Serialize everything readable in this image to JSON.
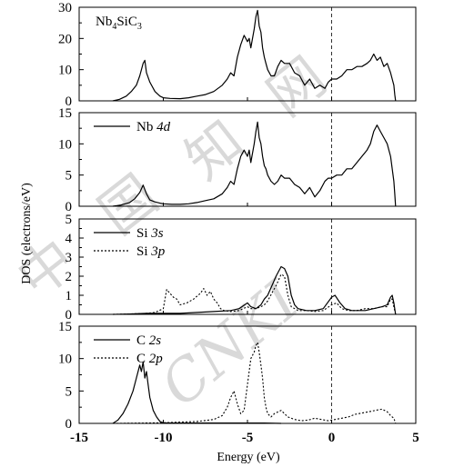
{
  "chart_data": [
    {
      "type": "line",
      "panel": "total",
      "legend_entries": [
        {
          "label": "Nb",
          "sub": "4",
          "label2": "SiC",
          "sub2": "3",
          "style": "none"
        }
      ],
      "ylim": [
        0,
        30
      ],
      "yticks": [
        0,
        10,
        20,
        30
      ],
      "series": [
        {
          "style": "solid",
          "x": [
            -13.0,
            -12.6,
            -12.2,
            -11.9,
            -11.6,
            -11.4,
            -11.2,
            -11.1,
            -11.0,
            -10.8,
            -10.5,
            -10.2,
            -10.0,
            -9.6,
            -9.0,
            -8.5,
            -8.0,
            -7.5,
            -7.0,
            -6.5,
            -6.2,
            -6.0,
            -5.8,
            -5.6,
            -5.4,
            -5.2,
            -5.0,
            -4.9,
            -4.8,
            -4.6,
            -4.5,
            -4.4,
            -4.3,
            -4.2,
            -4.1,
            -4.0,
            -3.9,
            -3.8,
            -3.6,
            -3.4,
            -3.2,
            -3.0,
            -2.8,
            -2.5,
            -2.2,
            -1.9,
            -1.6,
            -1.3,
            -1.0,
            -0.7,
            -0.4,
            -0.2,
            0.0,
            0.3,
            0.6,
            0.9,
            1.2,
            1.5,
            1.8,
            2.1,
            2.3,
            2.5,
            2.7,
            2.9,
            3.1,
            3.3,
            3.5,
            3.6,
            3.7,
            3.75,
            3.8
          ],
          "y": [
            0,
            0.5,
            1.5,
            3,
            5,
            8,
            12,
            13,
            9,
            6,
            3,
            1.5,
            1,
            0.8,
            0.7,
            1,
            1.5,
            2,
            3,
            5,
            7,
            9,
            8,
            14,
            18,
            21,
            19,
            20,
            17,
            23,
            27,
            29,
            24,
            22,
            17,
            14,
            12,
            10,
            8,
            8,
            11,
            13,
            12,
            12,
            9,
            8,
            5,
            7,
            4,
            5,
            4,
            6,
            7,
            7,
            8,
            10,
            10,
            11,
            11,
            12,
            13,
            15,
            13,
            14,
            11,
            12,
            9,
            7,
            5,
            2,
            0
          ]
        }
      ]
    },
    {
      "type": "line",
      "panel": "Nb",
      "legend_entries": [
        {
          "label": "Nb",
          "label2": "4d",
          "style": "solid"
        }
      ],
      "ylim": [
        0,
        15
      ],
      "yticks": [
        0,
        5,
        10,
        15
      ],
      "series": [
        {
          "name": "Nb 4d",
          "style": "solid",
          "x": [
            -13.0,
            -12.5,
            -12.0,
            -11.7,
            -11.4,
            -11.2,
            -11.0,
            -10.8,
            -10.5,
            -10.2,
            -10.0,
            -9.5,
            -9.0,
            -8.5,
            -8.0,
            -7.5,
            -7.0,
            -6.5,
            -6.2,
            -6.0,
            -5.8,
            -5.6,
            -5.4,
            -5.2,
            -5.0,
            -4.9,
            -4.8,
            -4.6,
            -4.5,
            -4.4,
            -4.3,
            -4.2,
            -4.1,
            -4.0,
            -3.9,
            -3.8,
            -3.6,
            -3.4,
            -3.2,
            -3.0,
            -2.8,
            -2.5,
            -2.2,
            -1.9,
            -1.6,
            -1.3,
            -1.0,
            -0.7,
            -0.4,
            -0.2,
            0.0,
            0.3,
            0.6,
            0.9,
            1.2,
            1.5,
            1.8,
            2.1,
            2.3,
            2.5,
            2.7,
            2.9,
            3.1,
            3.3,
            3.5,
            3.6,
            3.7,
            3.75,
            3.8
          ],
          "y": [
            0,
            0.2,
            0.6,
            1.2,
            2.2,
            3.4,
            2,
            1,
            0.7,
            0.5,
            0.4,
            0.3,
            0.3,
            0.4,
            0.6,
            0.9,
            1.2,
            2,
            3,
            4,
            3.5,
            6,
            8,
            9,
            8,
            9,
            7,
            10,
            12,
            13.5,
            11,
            10,
            8,
            6.5,
            6,
            5,
            4,
            3.5,
            4,
            5,
            4.5,
            4.5,
            3.5,
            3,
            2,
            3,
            1.5,
            2.5,
            4,
            4.5,
            4.5,
            5,
            5,
            6,
            6,
            7,
            8,
            9,
            10,
            12,
            13,
            12,
            11,
            10,
            8,
            6,
            4,
            2,
            0
          ]
        }
      ]
    },
    {
      "type": "line",
      "panel": "Si",
      "legend_entries": [
        {
          "label": "Si",
          "label2": "3s",
          "style": "solid"
        },
        {
          "label": "Si",
          "label2": "3p",
          "style": "dotted"
        }
      ],
      "ylim": [
        0,
        5
      ],
      "yticks": [
        0,
        1,
        2,
        3,
        4,
        5
      ],
      "series": [
        {
          "name": "Si 3s",
          "style": "solid",
          "x": [
            -13.0,
            -12.0,
            -11.0,
            -10.0,
            -9.0,
            -8.0,
            -7.0,
            -6.0,
            -5.5,
            -5.0,
            -4.8,
            -4.5,
            -4.2,
            -4.0,
            -3.8,
            -3.5,
            -3.3,
            -3.0,
            -2.8,
            -2.6,
            -2.4,
            -2.2,
            -2.0,
            -1.5,
            -1.0,
            -0.5,
            0.0,
            0.2,
            0.5,
            0.8,
            1.2,
            1.6,
            2.0,
            2.5,
            3.0,
            3.3,
            3.5,
            3.6,
            3.7,
            3.8
          ],
          "y": [
            0,
            0.02,
            0.05,
            0.05,
            0.05,
            0.1,
            0.15,
            0.2,
            0.3,
            0.6,
            0.4,
            0.3,
            0.5,
            0.8,
            1.0,
            1.6,
            2.0,
            2.5,
            2.4,
            2.0,
            1.0,
            0.5,
            0.3,
            0.2,
            0.2,
            0.3,
            0.9,
            1.0,
            0.6,
            0.3,
            0.2,
            0.2,
            0.2,
            0.3,
            0.4,
            0.5,
            0.9,
            1.0,
            0.6,
            0
          ]
        },
        {
          "name": "Si 3p",
          "style": "dotted",
          "x": [
            -13.0,
            -12.0,
            -11.0,
            -10.5,
            -10.0,
            -9.8,
            -9.6,
            -9.4,
            -9.2,
            -9.0,
            -8.6,
            -8.2,
            -7.8,
            -7.6,
            -7.4,
            -7.2,
            -7.0,
            -6.8,
            -6.6,
            -6.4,
            -6.0,
            -5.5,
            -5.0,
            -4.8,
            -4.5,
            -4.2,
            -4.0,
            -3.8,
            -3.5,
            -3.3,
            -3.0,
            -2.8,
            -2.6,
            -2.4,
            -2.2,
            -2.0,
            -1.5,
            -1.0,
            -0.5,
            0.0,
            0.3,
            0.6,
            1.0,
            1.5,
            2.0,
            2.5,
            3.0,
            3.3,
            3.5,
            3.6,
            3.7,
            3.8
          ],
          "y": [
            0,
            0.02,
            0.05,
            0.1,
            0.3,
            1.3,
            1.1,
            0.9,
            0.8,
            0.5,
            0.6,
            0.8,
            1.1,
            1.35,
            1.0,
            1.2,
            0.8,
            0.6,
            0.3,
            0.2,
            0.15,
            0.2,
            0.4,
            0.3,
            0.3,
            0.4,
            0.5,
            0.7,
            1.2,
            1.5,
            2.1,
            2.0,
            1.0,
            0.4,
            0.3,
            0.2,
            0.2,
            0.15,
            0.2,
            0.5,
            0.6,
            0.3,
            0.2,
            0.2,
            0.3,
            0.3,
            0.4,
            0.4,
            0.8,
            0.8,
            0.4,
            0
          ]
        }
      ]
    },
    {
      "type": "line",
      "panel": "C",
      "legend_entries": [
        {
          "label": "C",
          "label2": "2s",
          "style": "solid"
        },
        {
          "label": "C",
          "label2": "2p",
          "style": "dotted"
        }
      ],
      "ylim": [
        0,
        15
      ],
      "yticks": [
        0,
        5,
        10,
        15
      ],
      "series": [
        {
          "name": "C 2s",
          "style": "solid",
          "x": [
            -13.0,
            -12.7,
            -12.4,
            -12.1,
            -11.8,
            -11.6,
            -11.4,
            -11.3,
            -11.2,
            -11.1,
            -11.0,
            -10.9,
            -10.8,
            -10.6,
            -10.4,
            -10.2,
            -10.0,
            -9.5,
            -9.0,
            -8.0,
            -7.0,
            -6.0,
            -5.0,
            -4.0,
            -3.0
          ],
          "y": [
            0,
            0.5,
            1.5,
            3,
            5,
            7,
            9,
            8,
            9.5,
            7,
            8,
            6,
            4,
            2,
            1,
            0.3,
            0.1,
            0.05,
            0.05,
            0.05,
            0.05,
            0.05,
            0.05,
            0.05,
            0
          ]
        },
        {
          "name": "C 2p",
          "style": "dotted",
          "x": [
            -13.0,
            -11.0,
            -10.0,
            -9.0,
            -8.0,
            -7.0,
            -6.5,
            -6.2,
            -6.0,
            -5.8,
            -5.6,
            -5.4,
            -5.2,
            -5.0,
            -4.8,
            -4.6,
            -4.5,
            -4.4,
            -4.3,
            -4.2,
            -4.1,
            -4.0,
            -3.9,
            -3.8,
            -3.6,
            -3.4,
            -3.0,
            -2.6,
            -2.2,
            -1.8,
            -1.4,
            -1.0,
            -0.6,
            -0.2,
            0.2,
            0.6,
            1.0,
            1.4,
            1.8,
            2.2,
            2.6,
            3.0,
            3.3,
            3.5,
            3.7,
            3.8
          ],
          "y": [
            0,
            0.05,
            0.1,
            0.2,
            0.3,
            0.6,
            1.2,
            2.5,
            4,
            5,
            3,
            1.5,
            2,
            6,
            10,
            11,
            12,
            12.5,
            11,
            9,
            7,
            4,
            2.5,
            1.5,
            1,
            1.5,
            2,
            1,
            0.6,
            0.4,
            0.5,
            0.8,
            0.6,
            0.4,
            0.6,
            0.8,
            1,
            1.4,
            1.6,
            1.8,
            2,
            2.2,
            1.8,
            1.2,
            0.8,
            0
          ]
        }
      ]
    }
  ],
  "x_axis": {
    "xlim": [
      -15,
      5
    ],
    "ticks": [
      -15,
      -10,
      -5,
      0,
      5
    ],
    "tick_labels": [
      "-15",
      "-10",
      "-5",
      "0",
      "5"
    ],
    "label": "Energy (eV)"
  },
  "y_axis_label": "DOS (electrons/eV)",
  "fermi_level": 0,
  "watermark": [
    "中",
    "国",
    "知",
    "网",
    "CNKI"
  ]
}
